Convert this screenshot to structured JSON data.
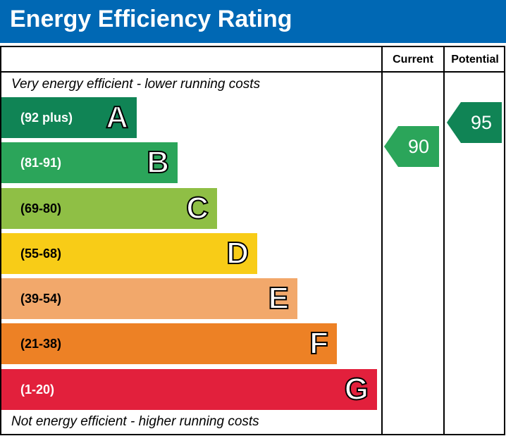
{
  "header": {
    "title": "Energy Efficiency Rating",
    "bg_color": "#0068b4"
  },
  "columns": {
    "current": "Current",
    "potential": "Potential"
  },
  "captions": {
    "top": "Very energy efficient - lower running costs",
    "bottom": "Not energy efficient - higher running costs"
  },
  "chart_data": {
    "type": "bar",
    "categories": [
      "A",
      "B",
      "C",
      "D",
      "E",
      "F",
      "G"
    ],
    "ranges": [
      "(92 plus)",
      "(81-91)",
      "(69-80)",
      "(55-68)",
      "(39-54)",
      "(21-38)",
      "(1-20)"
    ],
    "range_text_colors": [
      "#ffffff",
      "#ffffff",
      "#000000",
      "#000000",
      "#000000",
      "#000000",
      "#ffffff"
    ],
    "colors": [
      "#108455",
      "#2ba55a",
      "#8fbf45",
      "#f8cc17",
      "#f2a86b",
      "#ed8125",
      "#e2203c"
    ],
    "current": {
      "value": 90,
      "band": "B",
      "color": "#2ba55a"
    },
    "potential": {
      "value": 95,
      "band": "A",
      "color": "#108455"
    }
  }
}
